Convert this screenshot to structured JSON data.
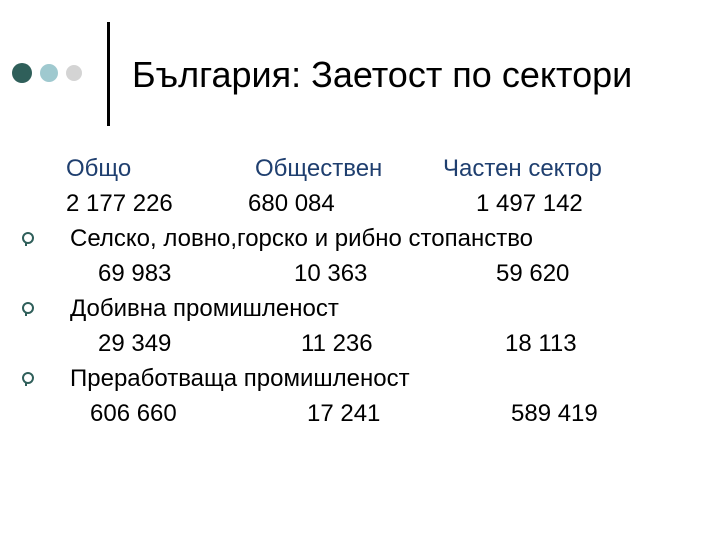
{
  "title": "България: Заетост по сектори",
  "headers": {
    "total": "Общо",
    "public": "Обществен",
    "private": "Частен сектор"
  },
  "totals": {
    "total": "2 177 226",
    "public": "680 084",
    "private": "1 497 142"
  },
  "sectors": [
    {
      "name": "Селско, ловно,горско и рибно стопанство",
      "total": "69 983",
      "public": "10 363",
      "private": "59 620"
    },
    {
      "name": "Добивна промишленост",
      "total": "29 349",
      "public": "11 236",
      "private": "18 113"
    },
    {
      "name": "Преработваща промишленост",
      "total": "606 660",
      "public": "17 241",
      "private": "589 419"
    }
  ],
  "colors": {
    "accent_text": "#1f3f6f",
    "bullet": "#2f5f5a",
    "dot_dark": "#2f5f5a",
    "dot_light": "#9fc9cf",
    "dot_grey": "#d4d4d4"
  }
}
